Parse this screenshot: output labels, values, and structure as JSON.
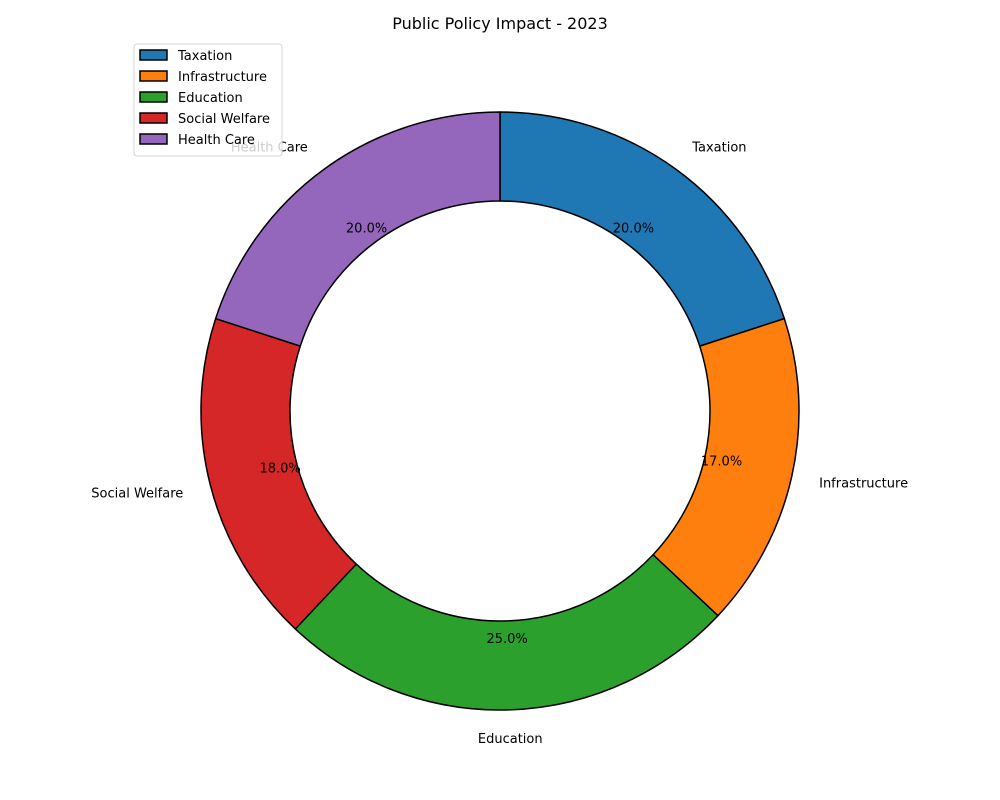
{
  "chart_data": {
    "type": "pie",
    "variant": "donut",
    "title": "Public Policy Impact - 2023",
    "categories": [
      "Taxation",
      "Infrastructure",
      "Education",
      "Social Welfare",
      "Health Care"
    ],
    "values": [
      20.0,
      17.0,
      25.0,
      18.0,
      20.0
    ],
    "percent_labels": [
      "20.0%",
      "17.0%",
      "25.0%",
      "18.0%",
      "20.0%"
    ],
    "colors": [
      "#1f77b4",
      "#ff7f0e",
      "#2ca02c",
      "#d62728",
      "#9467bd"
    ],
    "start": "top",
    "direction": "clockwise",
    "legend_position": "top-left",
    "slice_edge_color": "#000000"
  }
}
